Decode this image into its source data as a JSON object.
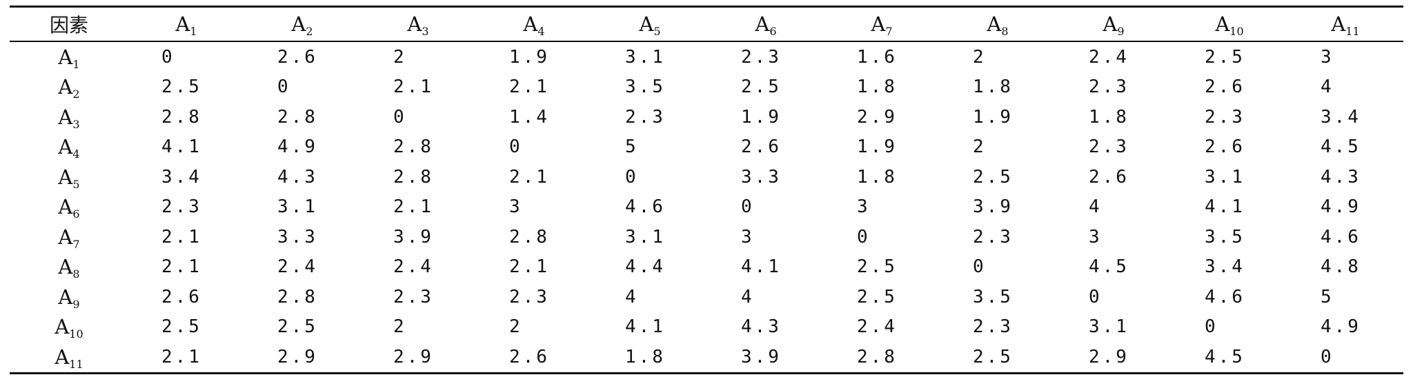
{
  "table": {
    "corner_label": "因素",
    "columns": [
      {
        "base": "A",
        "sub": "1"
      },
      {
        "base": "A",
        "sub": "2"
      },
      {
        "base": "A",
        "sub": "3"
      },
      {
        "base": "A",
        "sub": "4"
      },
      {
        "base": "A",
        "sub": "5"
      },
      {
        "base": "A",
        "sub": "6"
      },
      {
        "base": "A",
        "sub": "7"
      },
      {
        "base": "A",
        "sub": "8"
      },
      {
        "base": "A",
        "sub": "9"
      },
      {
        "base": "A",
        "sub": "10"
      },
      {
        "base": "A",
        "sub": "11"
      }
    ],
    "rows": [
      {
        "base": "A",
        "sub": "1",
        "values": [
          "0",
          "2.6",
          "2",
          "1.9",
          "3.1",
          "2.3",
          "1.6",
          "2",
          "2.4",
          "2.5",
          "3"
        ]
      },
      {
        "base": "A",
        "sub": "2",
        "values": [
          "2.5",
          "0",
          "2.1",
          "2.1",
          "3.5",
          "2.5",
          "1.8",
          "1.8",
          "2.3",
          "2.6",
          "4"
        ]
      },
      {
        "base": "A",
        "sub": "3",
        "values": [
          "2.8",
          "2.8",
          "0",
          "1.4",
          "2.3",
          "1.9",
          "2.9",
          "1.9",
          "1.8",
          "2.3",
          "3.4"
        ]
      },
      {
        "base": "A",
        "sub": "4",
        "values": [
          "4.1",
          "4.9",
          "2.8",
          "0",
          "5",
          "2.6",
          "1.9",
          "2",
          "2.3",
          "2.6",
          "4.5"
        ]
      },
      {
        "base": "A",
        "sub": "5",
        "values": [
          "3.4",
          "4.3",
          "2.8",
          "2.1",
          "0",
          "3.3",
          "1.8",
          "2.5",
          "2.6",
          "3.1",
          "4.3"
        ]
      },
      {
        "base": "A",
        "sub": "6",
        "values": [
          "2.3",
          "3.1",
          "2.1",
          "3",
          "4.6",
          "0",
          "3",
          "3.9",
          "4",
          "4.1",
          "4.9"
        ]
      },
      {
        "base": "A",
        "sub": "7",
        "values": [
          "2.1",
          "3.3",
          "3.9",
          "2.8",
          "3.1",
          "3",
          "0",
          "2.3",
          "3",
          "3.5",
          "4.6"
        ]
      },
      {
        "base": "A",
        "sub": "8",
        "values": [
          "2.1",
          "2.4",
          "2.4",
          "2.1",
          "4.4",
          "4.1",
          "2.5",
          "0",
          "4.5",
          "3.4",
          "4.8"
        ]
      },
      {
        "base": "A",
        "sub": "9",
        "values": [
          "2.6",
          "2.8",
          "2.3",
          "2.3",
          "4",
          "4",
          "2.5",
          "3.5",
          "0",
          "4.6",
          "5"
        ]
      },
      {
        "base": "A",
        "sub": "10",
        "values": [
          "2.5",
          "2.5",
          "2",
          "2",
          "4.1",
          "4.3",
          "2.4",
          "2.3",
          "3.1",
          "0",
          "4.9"
        ]
      },
      {
        "base": "A",
        "sub": "11",
        "values": [
          "2.1",
          "2.9",
          "2.9",
          "2.6",
          "1.8",
          "3.9",
          "2.8",
          "2.5",
          "2.9",
          "4.5",
          "0"
        ]
      }
    ]
  }
}
